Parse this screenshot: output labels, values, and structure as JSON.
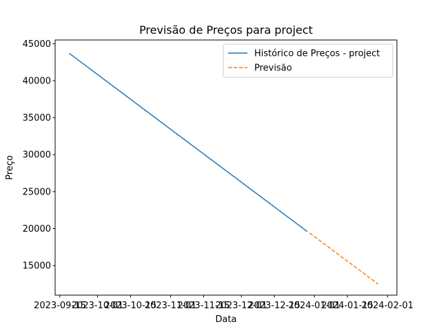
{
  "chart_data": {
    "type": "line",
    "title": "Previsão de Preços para project",
    "xlabel": "Data",
    "ylabel": "Preço",
    "ylim": [
      11000,
      45500
    ],
    "xlim": [
      "2023-09-13",
      "2024-02-05"
    ],
    "x_tick_labels": [
      "2023-09-15",
      "2023-10-01",
      "2023-10-15",
      "2023-11-01",
      "2023-11-15",
      "2023-12-01",
      "2023-12-15",
      "2024-01-01",
      "2024-01-15",
      "2024-02-01"
    ],
    "x_ticks": [
      "2023-09-15",
      "2023-10-01",
      "2023-10-15",
      "2023-11-01",
      "2023-11-15",
      "2023-12-01",
      "2023-12-15",
      "2024-01-01",
      "2024-01-15",
      "2024-02-01"
    ],
    "y_ticks": [
      15000,
      20000,
      25000,
      30000,
      35000,
      40000,
      45000
    ],
    "grid": false,
    "legend_position": "top-right",
    "series": [
      {
        "name": "Histórico de Preços - project",
        "style": "solid",
        "color": "#1f77b4",
        "x": [
          "2023-09-19",
          "2023-12-29"
        ],
        "y": [
          43700,
          19600
        ]
      },
      {
        "name": "Previsão",
        "style": "dashed",
        "color": "#ff7f0e",
        "x": [
          "2023-12-30",
          "2024-01-28"
        ],
        "y": [
          19400,
          12500
        ]
      }
    ]
  }
}
